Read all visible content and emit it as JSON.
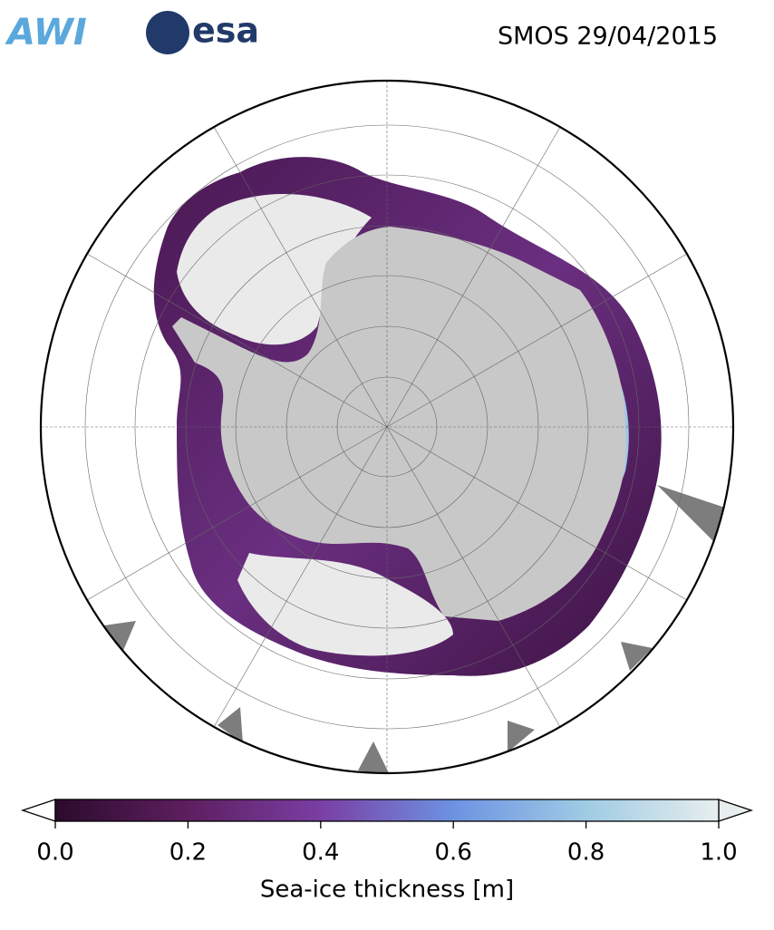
{
  "header": {
    "logos": [
      "AWI",
      "esa"
    ],
    "title": "SMOS 29/04/2015"
  },
  "colorbar": {
    "label": "Sea-ice thickness [m]",
    "lim": [
      0,
      1
    ],
    "ticks": [
      {
        "value": 0,
        "label": "0.0"
      },
      {
        "value": 0.2,
        "label": "0.2"
      },
      {
        "value": 0.4,
        "label": "0.4"
      },
      {
        "value": 0.6,
        "label": "0.6"
      },
      {
        "value": 0.8,
        "label": "0.8"
      },
      {
        "value": 1,
        "label": "1.0"
      }
    ]
  }
}
